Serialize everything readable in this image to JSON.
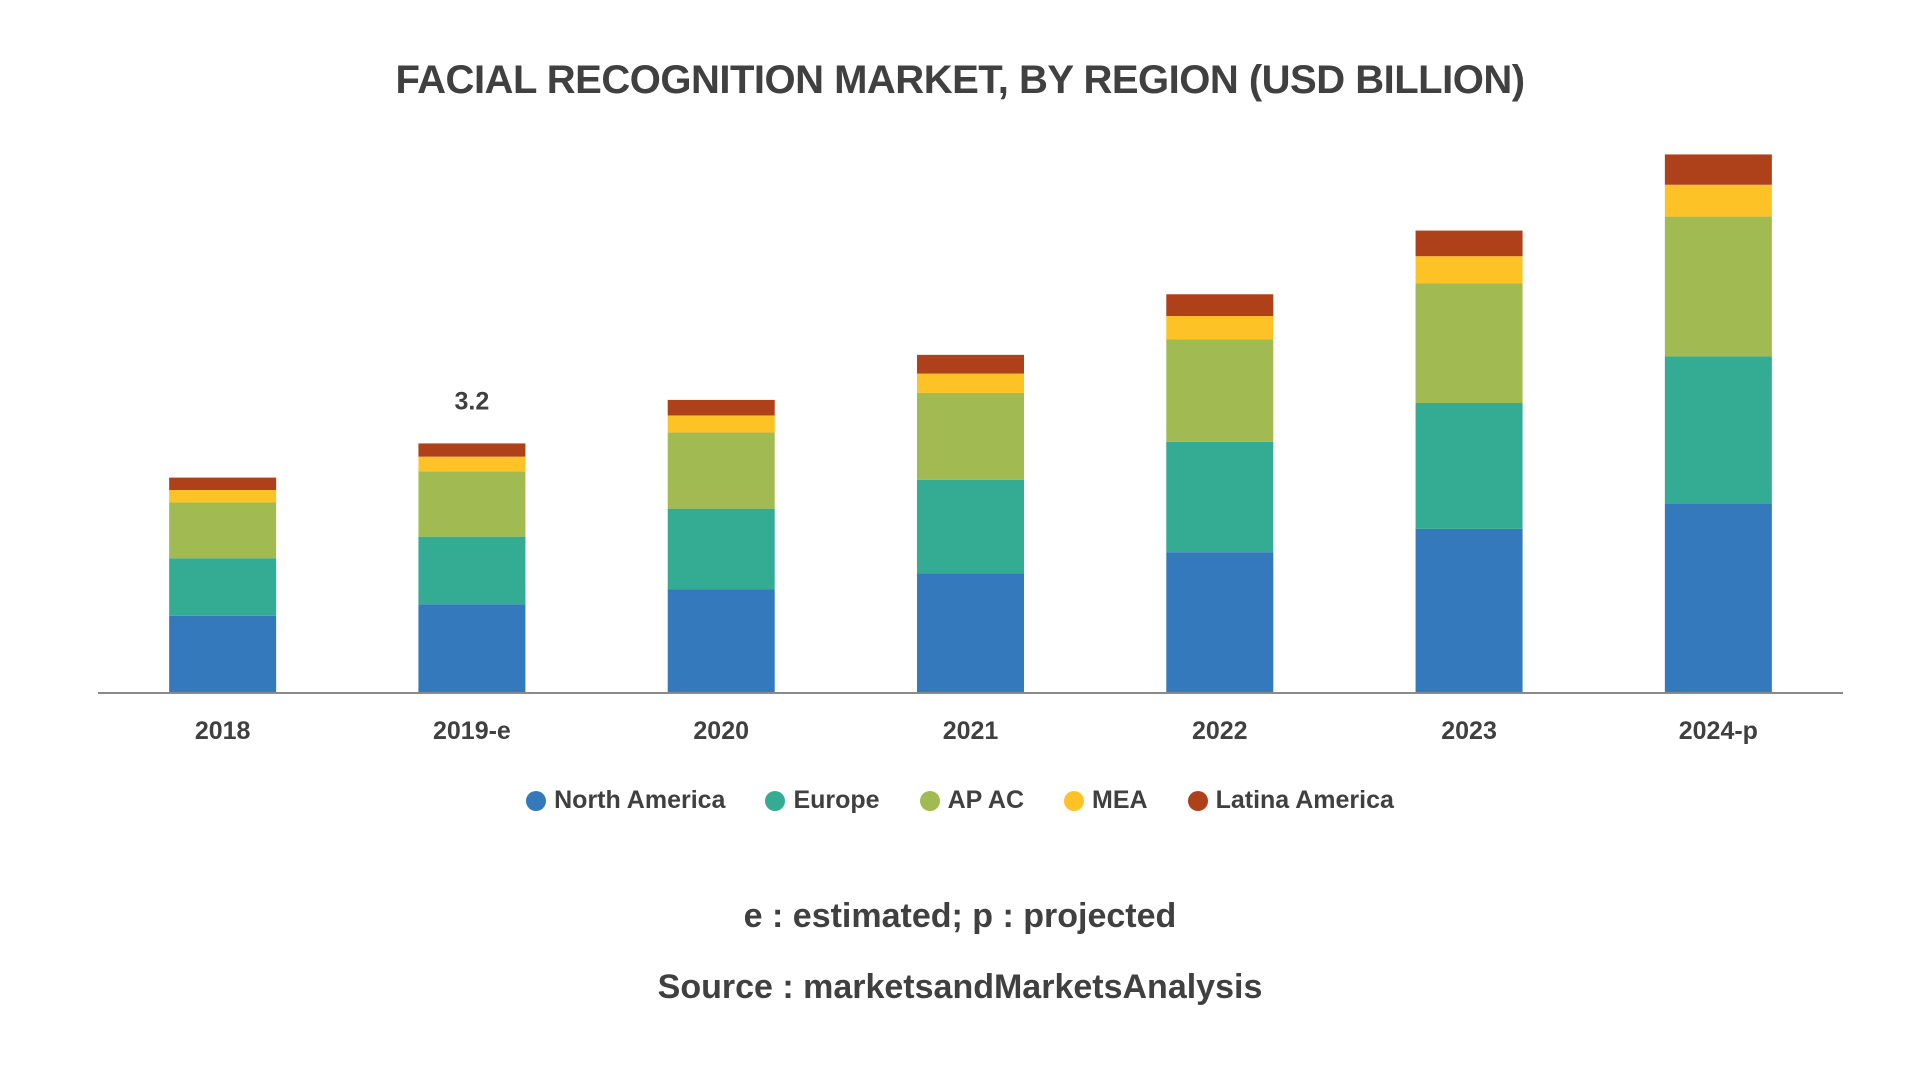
{
  "chart_data": {
    "type": "bar",
    "stacked": true,
    "title": "FACIAL RECOGNITION MARKET, BY REGION (USD BILLION)",
    "categories": [
      "2018",
      "2019-e",
      "2020",
      "2021",
      "2022",
      "2023",
      "2024-p"
    ],
    "series": [
      {
        "name": "North America",
        "color": "#3479BB",
        "values": [
          0.98,
          1.13,
          1.32,
          1.53,
          1.8,
          2.1,
          2.43
        ]
      },
      {
        "name": "Europe",
        "color": "#34AC93",
        "values": [
          0.74,
          0.87,
          1.04,
          1.2,
          1.42,
          1.62,
          1.89
        ]
      },
      {
        "name": "AP AC",
        "color": "#A2BA52",
        "values": [
          0.72,
          0.84,
          0.98,
          1.12,
          1.32,
          1.54,
          1.8
        ]
      },
      {
        "name": "MEA",
        "color": "#FDC226",
        "values": [
          0.16,
          0.19,
          0.22,
          0.25,
          0.3,
          0.35,
          0.41
        ]
      },
      {
        "name": "Latina America",
        "color": "#AE401A",
        "values": [
          0.16,
          0.17,
          0.2,
          0.24,
          0.28,
          0.33,
          0.39
        ]
      }
    ],
    "data_labels": [
      {
        "category": "2019-e",
        "text": "3.2"
      }
    ],
    "ylim": [
      0,
      6.9
    ],
    "grid": false,
    "y_axis_visible": false,
    "legend_position": "bottom"
  },
  "footnote": "e : estimated;  p : projected",
  "source": "Source : marketsandMarketsAnalysis"
}
